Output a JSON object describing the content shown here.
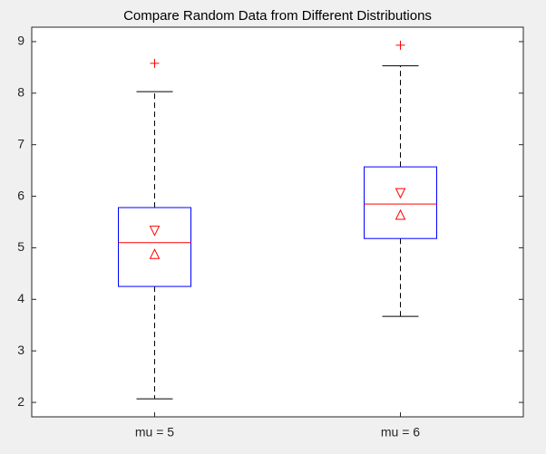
{
  "chart_data": {
    "type": "box",
    "title": "Compare Random Data from Different Distributions",
    "categories": [
      "mu = 5",
      "mu = 6"
    ],
    "boxes": [
      {
        "whisker_low": 2.07,
        "q1": 4.25,
        "median": 5.1,
        "q3": 5.78,
        "whisker_high": 8.03,
        "notch_low": 4.88,
        "notch_high": 5.33,
        "outliers": [
          8.58
        ]
      },
      {
        "whisker_low": 3.67,
        "q1": 5.18,
        "median": 5.85,
        "q3": 6.57,
        "whisker_high": 8.53,
        "notch_low": 5.64,
        "notch_high": 6.06,
        "outliers": [
          8.93
        ]
      }
    ],
    "box_color": "#0000ff",
    "median_color": "#ff0000",
    "whisker_color": "#000000",
    "outlier_color": "#ff0000",
    "ylim": [
      1.72,
      9.28
    ],
    "yticks": [
      2,
      3,
      4,
      5,
      6,
      7,
      8,
      9
    ]
  }
}
